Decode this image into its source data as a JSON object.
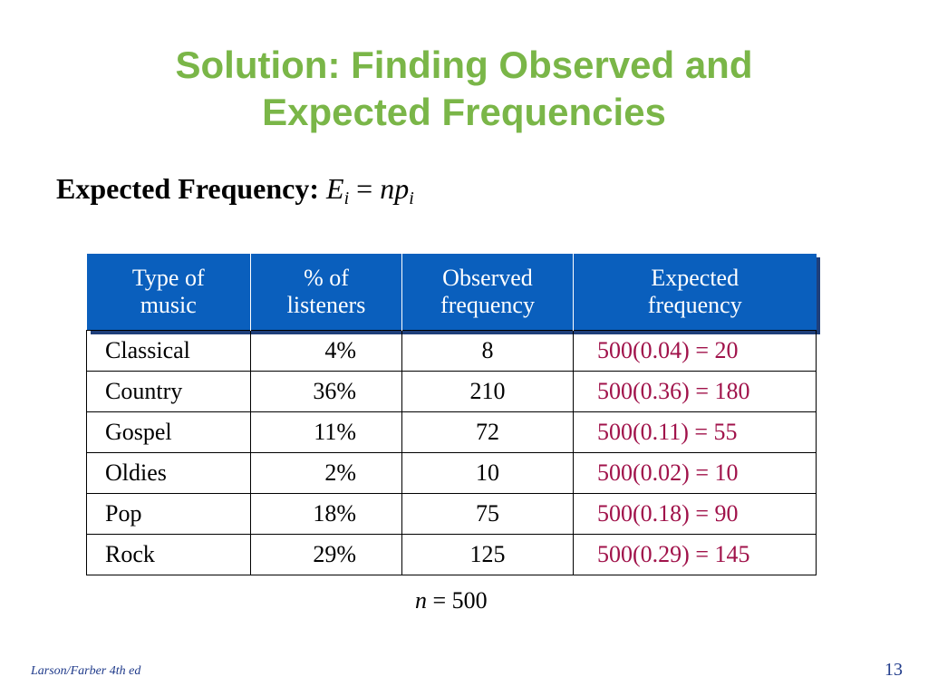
{
  "slide": {
    "title_line1": "Solution: Finding Observed and",
    "title_line2": "Expected Frequencies",
    "formula_label": "Expected Frequency:",
    "formula_E": "E",
    "formula_sub": "i",
    "formula_eq": "=",
    "formula_np": "np",
    "formula_sub2": "i"
  },
  "table": {
    "headers": {
      "type": [
        "Type of",
        "music"
      ],
      "pct": [
        "% of",
        "listeners"
      ],
      "obs": [
        "Observed",
        "frequency"
      ],
      "exp": [
        "Expected",
        "frequency"
      ]
    },
    "rows": [
      {
        "type": "Classical",
        "pct": "4%",
        "obs": "8",
        "exp": "500(0.04) = 20"
      },
      {
        "type": "Country",
        "pct": "36%",
        "obs": "210",
        "exp": "500(0.36) = 180"
      },
      {
        "type": "Gospel",
        "pct": "11%",
        "obs": "72",
        "exp": "500(0.11) = 55"
      },
      {
        "type": "Oldies",
        "pct": "2%",
        "obs": "10",
        "exp": "500(0.02) = 10"
      },
      {
        "type": "Pop",
        "pct": "18%",
        "obs": "75",
        "exp": "500(0.18) = 90"
      },
      {
        "type": "Rock",
        "pct": "29%",
        "obs": "125",
        "exp": "500(0.29) = 145"
      }
    ]
  },
  "n_note": {
    "n": "n",
    "eq": "= 500"
  },
  "footer": {
    "source": "Larson/Farber 4th ed",
    "page": "13"
  },
  "colors": {
    "title": "#7ab648",
    "header_bg": "#0a5fbd",
    "expected_text": "#a0124a",
    "footer": "#1f3a8a"
  }
}
